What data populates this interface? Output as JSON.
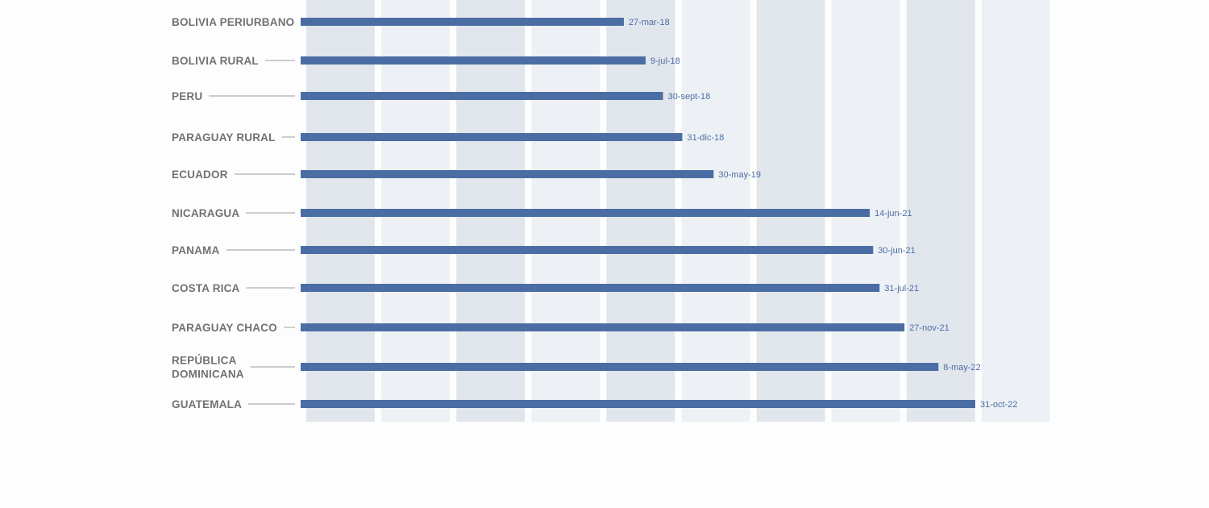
{
  "colors": {
    "bar": "#4a6da3",
    "band_dark": "#e1e6ed",
    "band_light": "#edf1f5",
    "label_text": "#707274",
    "date_text": "#4a6da3",
    "connector": "#9a9c9e",
    "background": "#fdfdfd"
  },
  "chart_data": {
    "type": "bar",
    "orientation": "horizontal",
    "title": "",
    "xlabel": "",
    "ylabel": "",
    "grid": false,
    "background_bands": [
      "dark",
      "light",
      "dark",
      "light",
      "dark",
      "light",
      "dark",
      "light",
      "dark",
      "light"
    ],
    "series": [
      {
        "values": [
          "2018-03-27",
          "2018-07-09",
          "2018-09-30",
          "2018-12-31",
          "2019-05-30",
          "2021-06-14",
          "2021-06-30",
          "2021-07-31",
          "2021-11-27",
          "2022-05-08",
          "2022-10-31"
        ]
      }
    ],
    "categories": [
      [
        "BOLIVIA PERIURBANO"
      ],
      [
        "BOLIVIA RURAL"
      ],
      [
        "PERU"
      ],
      [
        "PARAGUAY RURAL"
      ],
      [
        "ECUADOR"
      ],
      [
        "NICARAGUA"
      ],
      [
        "PANAMA"
      ],
      [
        "COSTA RICA"
      ],
      [
        "PARAGUAY CHACO"
      ],
      [
        "REPÚBLICA",
        "DOMINICANA"
      ],
      [
        "GUATEMALA"
      ]
    ],
    "data_labels": [
      "27-mar-18",
      "9-jul-18",
      "30-sept-18",
      "31-dic-18",
      "30-may-19",
      "14-jun-21",
      "30-jun-21",
      "31-jul-21",
      "27-nov-21",
      "8-may-22",
      "31-oct-22"
    ]
  }
}
